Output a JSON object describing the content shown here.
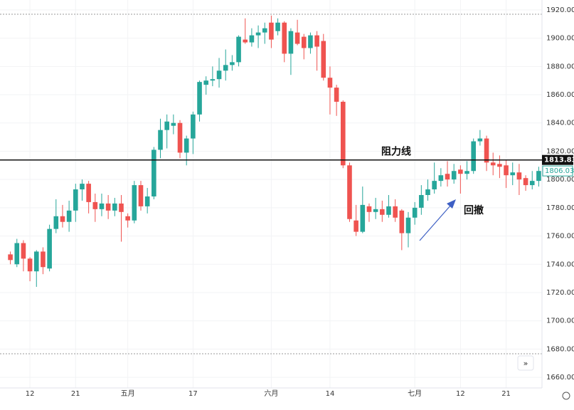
{
  "chart_data": {
    "type": "candlestick",
    "categories": [
      null,
      null,
      null,
      "12",
      null,
      null,
      null,
      null,
      null,
      null,
      "21",
      null,
      null,
      null,
      null,
      null,
      null,
      null,
      "五月",
      null,
      null,
      null,
      null,
      null,
      null,
      null,
      null,
      null,
      "17",
      null,
      null,
      null,
      null,
      null,
      null,
      null,
      null,
      null,
      null,
      null,
      "六月",
      null,
      null,
      null,
      null,
      null,
      null,
      null,
      null,
      "14",
      null,
      null,
      null,
      null,
      null,
      null,
      null,
      null,
      null,
      null,
      null,
      null,
      "七月",
      null,
      null,
      null,
      null,
      null,
      null,
      "12",
      null,
      null,
      null,
      null,
      null,
      null,
      "21",
      null,
      null,
      null,
      null,
      null
    ],
    "open": [
      1747,
      1740,
      1755,
      1744,
      1735,
      1749,
      1737,
      1765,
      1774,
      1770,
      1778,
      1793,
      1797,
      1784,
      1779,
      1783,
      1778,
      1783,
      1774,
      1771,
      1796,
      1781,
      1788,
      1821,
      1835,
      1838,
      1840,
      1819,
      1829,
      1846,
      1867,
      1870,
      1871,
      1877,
      1881,
      1883,
      1899,
      1897,
      1902,
      1904,
      1911,
      1905,
      1911,
      1889,
      1904,
      1901,
      1893,
      1902,
      1898,
      1872,
      1865,
      1855,
      1810,
      1771,
      1763,
      1781,
      1777,
      1779,
      1775,
      1781,
      1778,
      1762,
      1773,
      1780,
      1789,
      1793,
      1799,
      1804,
      1800,
      1807,
      1804,
      1806,
      1827,
      1829,
      1812,
      1811,
      1810,
      1803,
      1805,
      1801,
      1796,
      1799
    ],
    "high": [
      1749,
      1758,
      1757,
      1745,
      1750,
      1752,
      1768,
      1786,
      1782,
      1785,
      1797,
      1800,
      1799,
      1790,
      1790,
      1789,
      1787,
      1789,
      1776,
      1799,
      1799,
      1794,
      1823,
      1843,
      1846,
      1846,
      1842,
      1831,
      1848,
      1870,
      1873,
      1880,
      1886,
      1892,
      1888,
      1902,
      1914,
      1907,
      1909,
      1911,
      1916,
      1914,
      1912,
      1907,
      1913,
      1903,
      1904,
      1905,
      1903,
      1880,
      1867,
      1856,
      1812,
      1782,
      1795,
      1783,
      1787,
      1785,
      1789,
      1786,
      1779,
      1777,
      1784,
      1796,
      1800,
      1812,
      1808,
      1813,
      1811,
      1810,
      1813,
      1829,
      1835,
      1831,
      1819,
      1817,
      1814,
      1812,
      1811,
      1803,
      1806,
      1809
    ],
    "low": [
      1740,
      1738,
      1735,
      1728,
      1724,
      1733,
      1735,
      1762,
      1766,
      1763,
      1770,
      1785,
      1776,
      1770,
      1774,
      1772,
      1774,
      1756,
      1766,
      1769,
      1778,
      1776,
      1786,
      1815,
      1822,
      1832,
      1815,
      1810,
      1818,
      1841,
      1860,
      1866,
      1865,
      1870,
      1877,
      1880,
      1896,
      1894,
      1893,
      1896,
      1893,
      1902,
      1883,
      1874,
      1895,
      1885,
      1889,
      1877,
      1870,
      1846,
      1845,
      1808,
      1770,
      1760,
      1762,
      1770,
      1772,
      1770,
      1773,
      1770,
      1750,
      1752,
      1768,
      1775,
      1785,
      1790,
      1795,
      1795,
      1797,
      1790,
      1800,
      1804,
      1824,
      1806,
      1803,
      1801,
      1794,
      1796,
      1789,
      1792,
      1793,
      1795
    ],
    "close": [
      1743,
      1755,
      1744,
      1735,
      1749,
      1738,
      1765,
      1774,
      1770,
      1778,
      1793,
      1797,
      1784,
      1779,
      1783,
      1778,
      1783,
      1777,
      1771,
      1796,
      1781,
      1788,
      1821,
      1835,
      1841,
      1840,
      1819,
      1829,
      1846,
      1869,
      1870,
      1871,
      1877,
      1881,
      1883,
      1901,
      1897,
      1902,
      1904,
      1907,
      1899,
      1911,
      1889,
      1905,
      1896,
      1893,
      1902,
      1894,
      1872,
      1865,
      1855,
      1810,
      1772,
      1763,
      1782,
      1777,
      1779,
      1775,
      1781,
      1773,
      1762,
      1773,
      1780,
      1789,
      1793,
      1799,
      1803,
      1800,
      1806,
      1804,
      1806,
      1827,
      1829,
      1812,
      1810,
      1809,
      1803,
      1805,
      1800,
      1796,
      1799,
      1806.03
    ],
    "up_color": "#26a69a",
    "down_color": "#ef5350",
    "ylim": [
      1652.5,
      1927
    ],
    "yticks": [
      {
        "value": 1660,
        "label": "1660.00"
      },
      {
        "value": 1680,
        "label": "1680.00"
      },
      {
        "value": 1700,
        "label": "1700.00"
      },
      {
        "value": 1720,
        "label": "1720.00"
      },
      {
        "value": 1740,
        "label": "1740.00"
      },
      {
        "value": 1760,
        "label": "1760.00"
      },
      {
        "value": 1780,
        "label": "1780.00"
      },
      {
        "value": 1800,
        "label": "1800.00"
      },
      {
        "value": 1820,
        "label": "1820.00"
      },
      {
        "value": 1840,
        "label": "1840.00"
      },
      {
        "value": 1860,
        "label": "1860.00"
      },
      {
        "value": 1880,
        "label": "1880.00"
      },
      {
        "value": 1900,
        "label": "1900.00"
      },
      {
        "value": 1920,
        "label": "1920.00"
      }
    ],
    "grid": true,
    "resistance": {
      "value": 1813.83,
      "text": "阻力线"
    },
    "annotation": "回撤"
  }
}
